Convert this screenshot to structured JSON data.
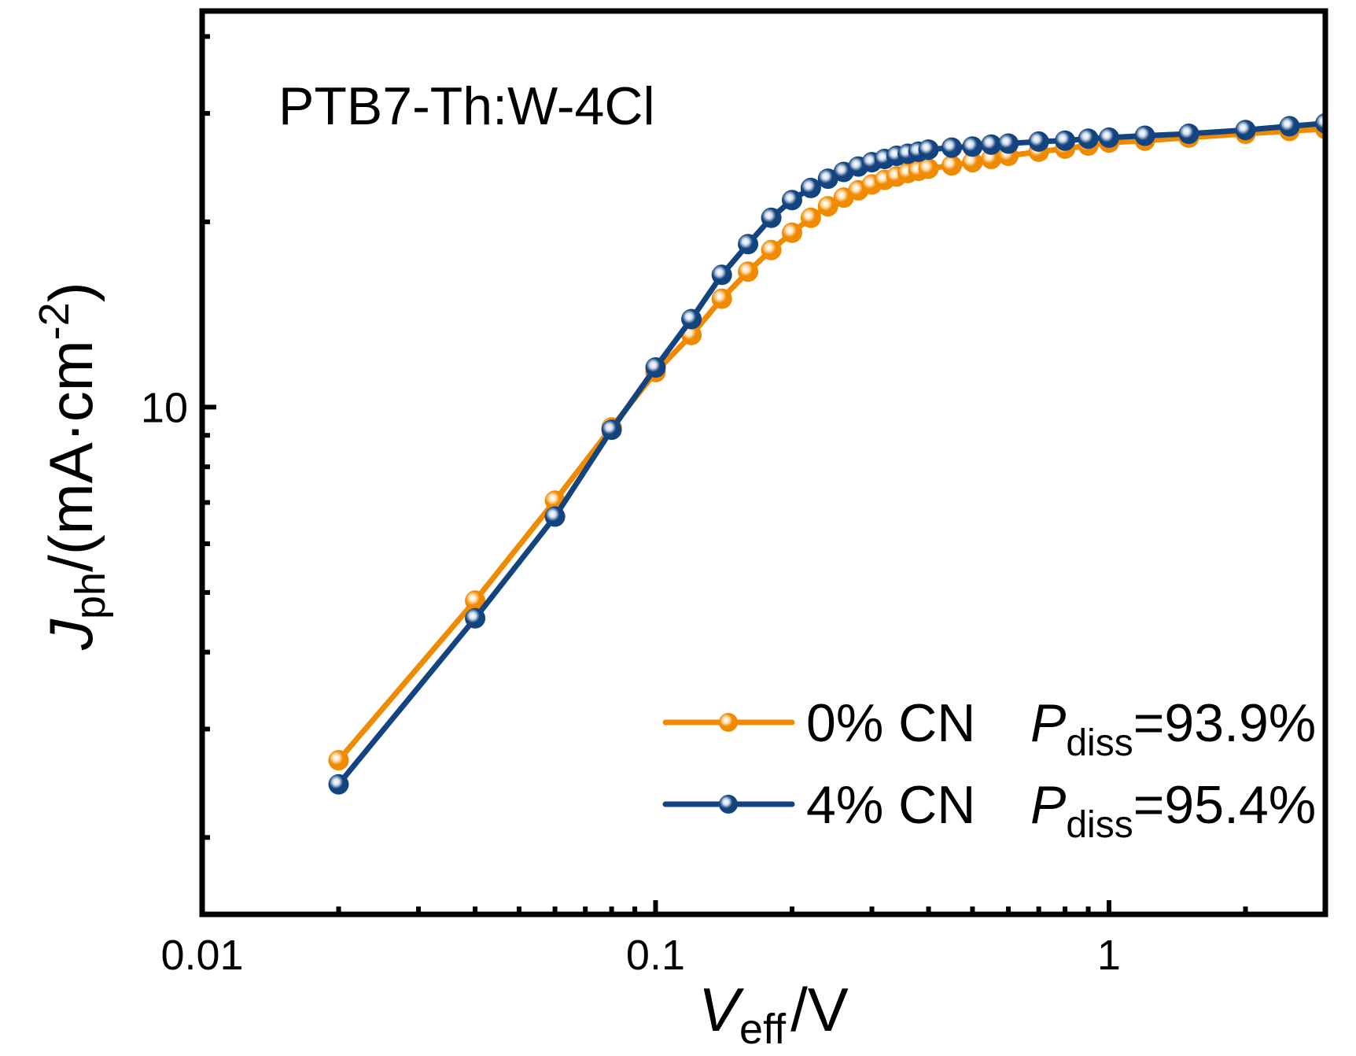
{
  "chart_data": {
    "type": "line",
    "title": "",
    "annotation": "PTB7-Th:W-4Cl",
    "xlabel": {
      "main": "V",
      "sub": "eff",
      "unit": "/V"
    },
    "ylabel": {
      "main": "J",
      "sub": "ph",
      "unit": "/(mA·cm",
      "sup": "-2",
      "close": ")"
    },
    "xscale": "log",
    "yscale": "log",
    "xlim": [
      0.01,
      3.0
    ],
    "ylim": [
      1.5,
      44
    ],
    "x_ticks": [
      {
        "value": 0.01,
        "label": "0.01"
      },
      {
        "value": 0.1,
        "label": "0.1"
      },
      {
        "value": 1,
        "label": "1"
      }
    ],
    "x_minor_ticks": [
      0.02,
      0.03,
      0.04,
      0.05,
      0.06,
      0.07,
      0.08,
      0.09,
      0.2,
      0.3,
      0.4,
      0.5,
      0.6,
      0.7,
      0.8,
      0.9,
      2
    ],
    "y_ticks": [
      {
        "value": 10,
        "label": "10"
      }
    ],
    "y_minor_ticks": [
      2,
      3,
      4,
      5,
      6,
      7,
      8,
      9,
      20,
      30,
      40
    ],
    "grid": false,
    "legend_position": "bottom-right",
    "series": [
      {
        "name": "0% CN",
        "label": "0% CN",
        "pdiss_symbol": "P",
        "pdiss_sub": "diss",
        "pdiss_value": "=93.9%",
        "color": "#F08A00",
        "highlight": "#FFE6C2",
        "x": [
          0.02,
          0.04,
          0.06,
          0.08,
          0.1,
          0.12,
          0.14,
          0.16,
          0.18,
          0.2,
          0.22,
          0.24,
          0.26,
          0.28,
          0.3,
          0.32,
          0.34,
          0.36,
          0.38,
          0.4,
          0.45,
          0.5,
          0.55,
          0.6,
          0.7,
          0.8,
          0.9,
          1.0,
          1.2,
          1.5,
          2.0,
          2.5,
          3.0
        ],
        "y": [
          2.67,
          4.85,
          7.05,
          9.27,
          11.4,
          13.1,
          15.0,
          16.6,
          18.0,
          19.2,
          20.3,
          21.2,
          21.9,
          22.5,
          23.0,
          23.4,
          23.7,
          24.0,
          24.2,
          24.4,
          24.7,
          25.0,
          25.3,
          25.6,
          26.0,
          26.3,
          26.6,
          26.9,
          27.1,
          27.4,
          27.8,
          28.1,
          28.3
        ]
      },
      {
        "name": "4% CN",
        "label": "4% CN",
        "pdiss_symbol": "P",
        "pdiss_sub": "diss",
        "pdiss_value": "=95.4%",
        "color": "#134480",
        "highlight": "#D6E0EE",
        "x": [
          0.02,
          0.04,
          0.06,
          0.08,
          0.1,
          0.12,
          0.14,
          0.16,
          0.18,
          0.2,
          0.22,
          0.24,
          0.26,
          0.28,
          0.3,
          0.32,
          0.34,
          0.36,
          0.38,
          0.4,
          0.45,
          0.5,
          0.55,
          0.6,
          0.7,
          0.8,
          0.9,
          1.0,
          1.2,
          1.5,
          2.0,
          2.5,
          3.0
        ],
        "y": [
          2.44,
          4.54,
          6.64,
          9.19,
          11.6,
          13.9,
          16.4,
          18.4,
          20.3,
          21.7,
          22.7,
          23.5,
          24.1,
          24.6,
          25.0,
          25.3,
          25.6,
          25.8,
          26.0,
          26.2,
          26.4,
          26.5,
          26.7,
          26.8,
          27.0,
          27.1,
          27.3,
          27.4,
          27.6,
          27.8,
          28.2,
          28.6,
          28.9
        ]
      }
    ]
  }
}
